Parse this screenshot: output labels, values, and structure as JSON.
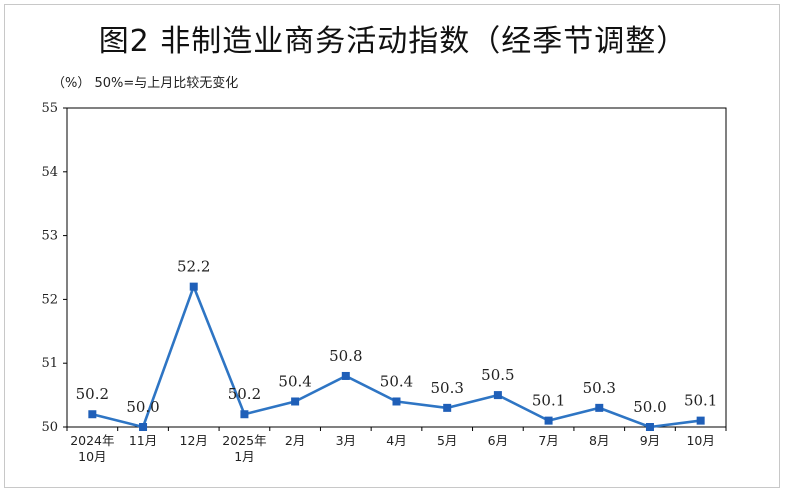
{
  "chart_data": {
    "type": "line",
    "title": "图2 非制造业商务活动指数（经季节调整）",
    "note": "（%） 50%=与上月比较无变化",
    "categories": [
      [
        "2024年",
        "10月"
      ],
      [
        "11月"
      ],
      [
        "12月"
      ],
      [
        "2025年",
        "1月"
      ],
      [
        "2月"
      ],
      [
        "3月"
      ],
      [
        "4月"
      ],
      [
        "5月"
      ],
      [
        "6月"
      ],
      [
        "7月"
      ],
      [
        "8月"
      ],
      [
        "9月"
      ],
      [
        "10月"
      ]
    ],
    "values": [
      50.2,
      50.0,
      52.2,
      50.2,
      50.4,
      50.8,
      50.4,
      50.3,
      50.5,
      50.1,
      50.3,
      50.0,
      50.1
    ],
    "data_labels": [
      "50.2",
      "50.0",
      "52.2",
      "50.2",
      "50.4",
      "50.8",
      "50.4",
      "50.3",
      "50.5",
      "50.1",
      "50.3",
      "50.0",
      "50.1"
    ],
    "ylim": [
      50,
      55
    ],
    "yticks": [
      "50",
      "51",
      "52",
      "53",
      "54",
      "55"
    ],
    "grid": false,
    "line_color": "#2e75c4",
    "marker_color": "#1f5fb8"
  }
}
